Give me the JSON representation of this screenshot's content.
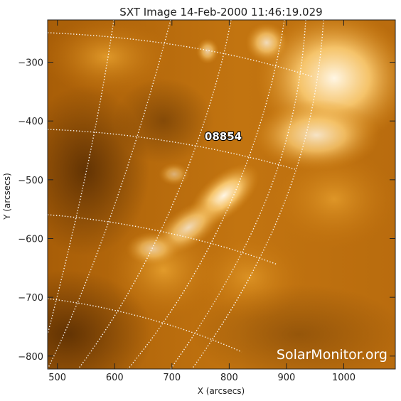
{
  "chart_data": {
    "type": "image",
    "title": "SXT Image 14-Feb-2000 11:46:19.029",
    "xlabel": "X (arcsecs)",
    "ylabel": "Y (arcsecs)",
    "xlim": [
      483,
      1090
    ],
    "ylim": [
      -822,
      -228
    ],
    "xticks": [
      500,
      600,
      700,
      800,
      900,
      1000
    ],
    "yticks": [
      -300,
      -400,
      -500,
      -600,
      -700,
      -800
    ],
    "xtick_labels": [
      "500",
      "600",
      "700",
      "800",
      "900",
      "1000"
    ],
    "ytick_labels": [
      "−300",
      "−400",
      "−500",
      "−600",
      "−700",
      "−800"
    ],
    "colormap": "orange (yohkoh sxt)",
    "grid": "heliographic grid, dotted white",
    "region_label": {
      "text": "08854",
      "x": 795,
      "y": -413
    },
    "watermark": "SolarMonitor.org"
  }
}
